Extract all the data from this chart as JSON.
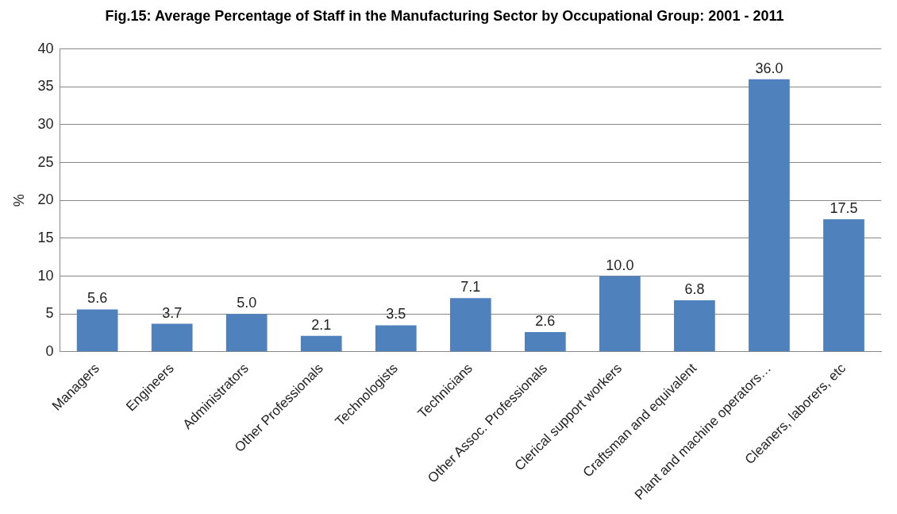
{
  "chart_data": {
    "type": "bar",
    "title": "Fig.15: Average Percentage of Staff in the Manufacturing Sector by Occupational Group: 2001 - 2011",
    "ylabel": "%",
    "categories": [
      "Managers",
      "Engineers",
      "Administrators",
      "Other Professionals",
      "Technologists",
      "Technicians",
      "Other Assoc. Professionals",
      "Clerical support workers",
      "Craftsman and equivalent",
      "Plant and machine operators…",
      "Cleaners, laborers, etc"
    ],
    "values": [
      5.6,
      3.7,
      5.0,
      2.1,
      3.5,
      7.1,
      2.6,
      10.0,
      6.8,
      36.0,
      17.5
    ],
    "value_labels": [
      "5.6",
      "3.7",
      "5.0",
      "2.1",
      "3.5",
      "7.1",
      "2.6",
      "10.0",
      "6.8",
      "36.0",
      "17.5"
    ],
    "color": "#4f81bd",
    "ylim": [
      0,
      40
    ],
    "yticks": [
      0,
      5,
      10,
      15,
      20,
      25,
      30,
      35,
      40
    ],
    "grid": "y",
    "legend": false
  }
}
